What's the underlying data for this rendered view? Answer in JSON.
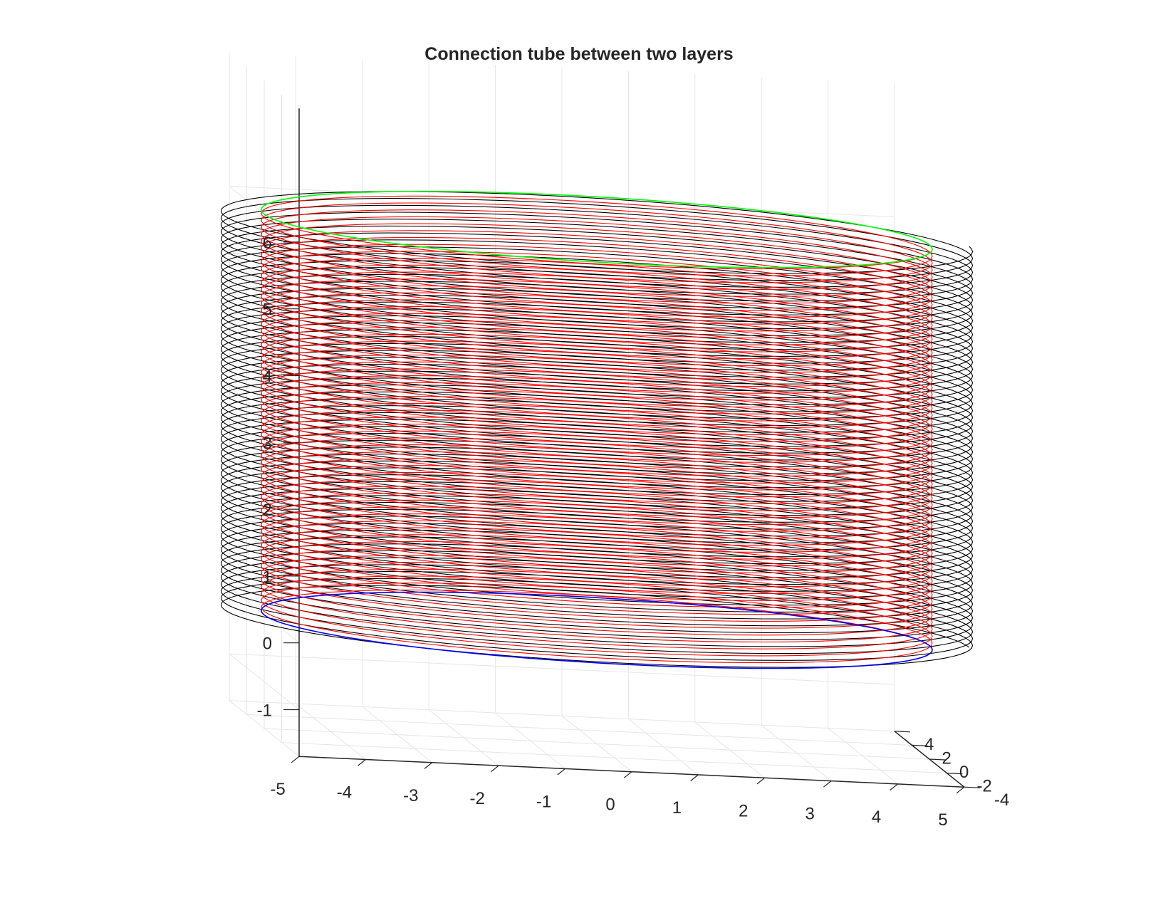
{
  "chart_data": {
    "type": "line3d",
    "title": "Connection tube between two layers",
    "xlabel": "",
    "ylabel": "",
    "zlabel": "",
    "xlim": [
      -5,
      5
    ],
    "ylim": [
      -4,
      4
    ],
    "zlim": [
      -1,
      6
    ],
    "x_ticks": [
      "-5",
      "-4",
      "-3",
      "-2",
      "-1",
      "0",
      "1",
      "2",
      "3",
      "4",
      "5"
    ],
    "y_ticks": [
      "-4",
      "-2",
      "0",
      "2",
      "4"
    ],
    "z_ticks": [
      "-1",
      "0",
      "1",
      "2",
      "3",
      "4",
      "5",
      "6"
    ],
    "grid": true,
    "box": false,
    "series": [
      {
        "shape": "helix",
        "color": "#000000",
        "radius": 5.6,
        "z_start": 0,
        "z_end": 6,
        "turns": 58
      },
      {
        "shape": "helix",
        "color": "#ff0000",
        "radius": 5.0,
        "z_start": 0,
        "z_end": 6,
        "turns": 58
      },
      {
        "shape": "circle",
        "color": "#0000ff",
        "radius": 5.0,
        "z": 0
      },
      {
        "shape": "circle",
        "color": "#00ff00",
        "radius": 5.0,
        "z": 6
      }
    ]
  }
}
